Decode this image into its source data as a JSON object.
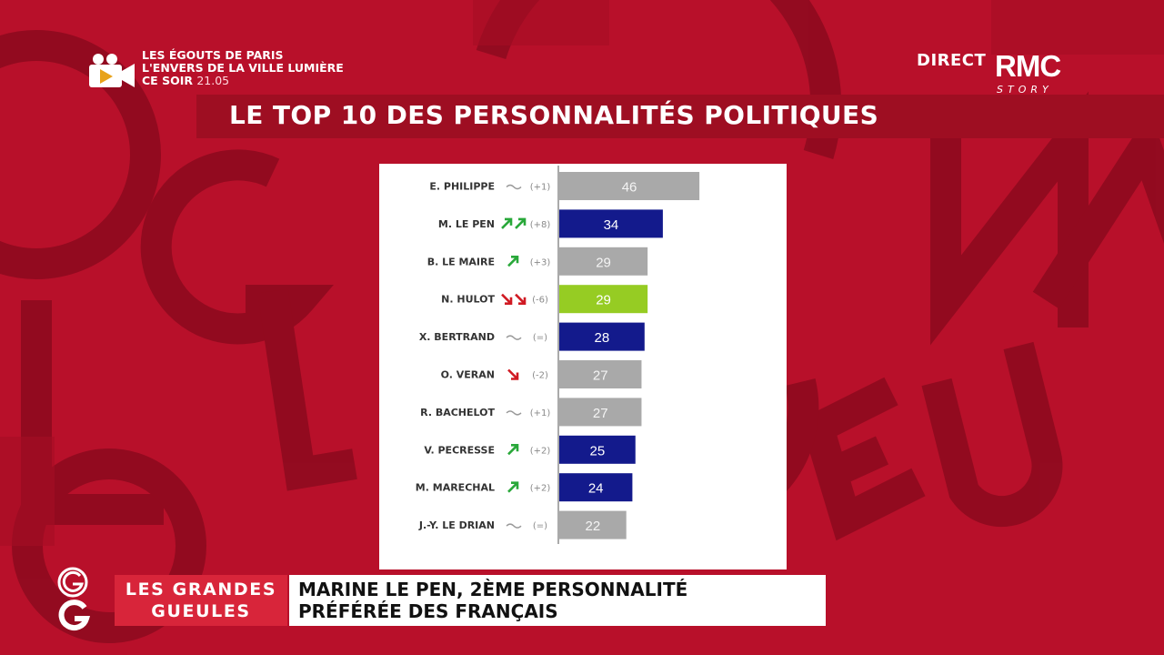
{
  "promo": {
    "line1": "LES ÉGOUTS DE PARIS",
    "line2": "L'ENVERS DE LA VILLE LUMIÈRE",
    "line3": "CE SOIR",
    "time": "21.05",
    "icon": "camera-play-icon"
  },
  "channel": {
    "direct": "DIRECT",
    "brand": "RMC",
    "sub": "STORY"
  },
  "chart_data": {
    "type": "bar",
    "orientation": "horizontal",
    "title": "LE TOP 10 DES PERSONNALITÉS POLITIQUES",
    "xlim": [
      0,
      100
    ],
    "grid": false,
    "legend": "none",
    "rows": [
      {
        "name": "E. PHILIPPE",
        "trend": "stable",
        "change": "(+1)",
        "value": 46,
        "color": "#a9a9a9"
      },
      {
        "name": "M. LE PEN",
        "trend": "up2",
        "change": "(+8)",
        "value": 34,
        "color": "#131a8c"
      },
      {
        "name": "B. LE MAIRE",
        "trend": "up",
        "change": "(+3)",
        "value": 29,
        "color": "#a9a9a9"
      },
      {
        "name": "N. HULOT",
        "trend": "down2",
        "change": "(-6)",
        "value": 29,
        "color": "#96cc23"
      },
      {
        "name": "X. BERTRAND",
        "trend": "stable",
        "change": "(=)",
        "value": 28,
        "color": "#131a8c"
      },
      {
        "name": "O. VERAN",
        "trend": "down",
        "change": "(-2)",
        "value": 27,
        "color": "#a9a9a9"
      },
      {
        "name": "R. BACHELOT",
        "trend": "stable",
        "change": "(+1)",
        "value": 27,
        "color": "#a9a9a9"
      },
      {
        "name": "V. PECRESSE",
        "trend": "up",
        "change": "(+2)",
        "value": 25,
        "color": "#131a8c"
      },
      {
        "name": "M. MARECHAL",
        "trend": "up",
        "change": "(+2)",
        "value": 24,
        "color": "#131a8c"
      },
      {
        "name": "J.-Y. LE DRIAN",
        "trend": "stable",
        "change": "(=)",
        "value": 22,
        "color": "#a9a9a9"
      }
    ]
  },
  "colors": {
    "up": "#29a83a",
    "down": "#d01a23",
    "stable": "#999999"
  },
  "show": {
    "name_line1": "LES GRANDES",
    "name_line2": "GUEULES",
    "headline_line1": "MARINE LE PEN, 2ÈME PERSONNALITÉ",
    "headline_line2": "PRÉFÉRÉE DES FRANÇAIS"
  }
}
